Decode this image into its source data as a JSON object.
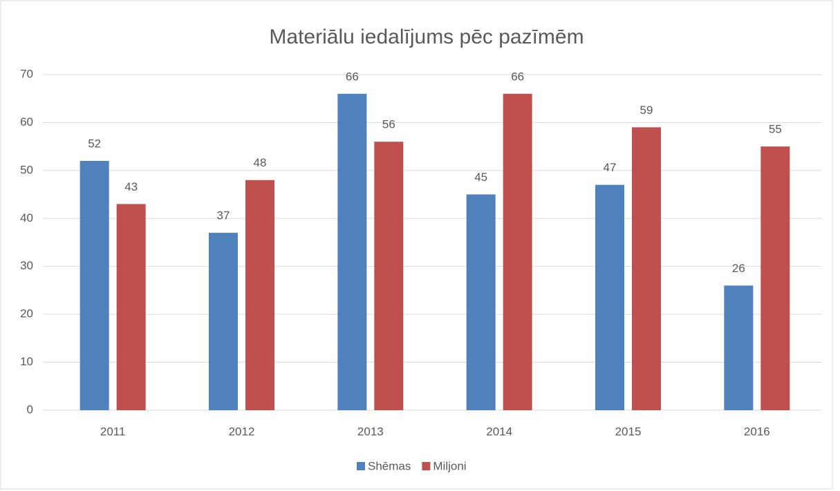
{
  "chart_data": {
    "type": "bar",
    "title": "Materiālu iedalījums pēc pazīmēm",
    "categories": [
      "2011",
      "2012",
      "2013",
      "2014",
      "2015",
      "2016"
    ],
    "series": [
      {
        "name": "Shēmas",
        "color": "#4f81bd",
        "values": [
          52,
          37,
          66,
          45,
          47,
          26
        ]
      },
      {
        "name": "Miljoni",
        "color": "#c0504d",
        "values": [
          43,
          48,
          56,
          66,
          59,
          55
        ]
      }
    ],
    "ylim": [
      0,
      70
    ],
    "yticks": [
      0,
      10,
      20,
      30,
      40,
      50,
      60,
      70
    ],
    "grid": true,
    "legend": "bottom"
  }
}
